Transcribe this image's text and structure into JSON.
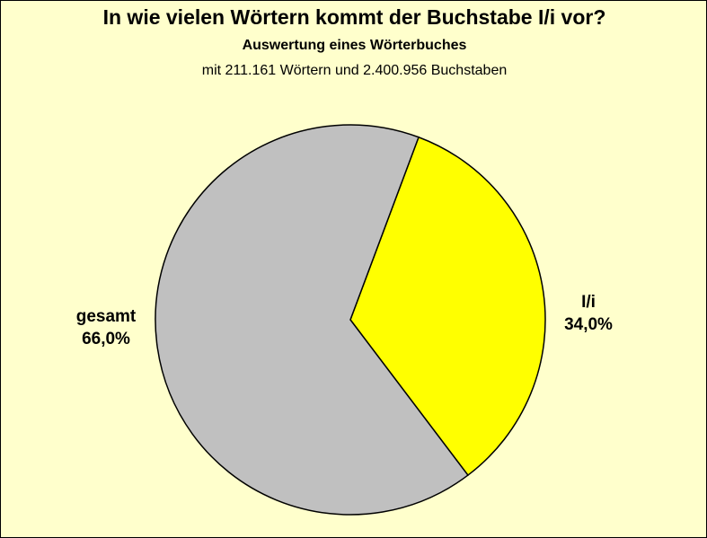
{
  "chart_data": {
    "type": "pie",
    "title": "In wie vielen Wörtern kommt der Buchstabe I/i vor?",
    "subtitle": "Auswertung eines Wörterbuches",
    "subtitle2": "mit 211.161 Wörtern und 2.400.956 Buchstaben",
    "slices": [
      {
        "name": "I/i",
        "value": 34.0,
        "label": "34,0%",
        "color": "#ffff00"
      },
      {
        "name": "gesamt",
        "value": 66.0,
        "label": "66,0%",
        "color": "#c0c0c0"
      }
    ],
    "legend": false
  },
  "colors": {
    "background": "#ffffcc",
    "outline": "#000000"
  }
}
